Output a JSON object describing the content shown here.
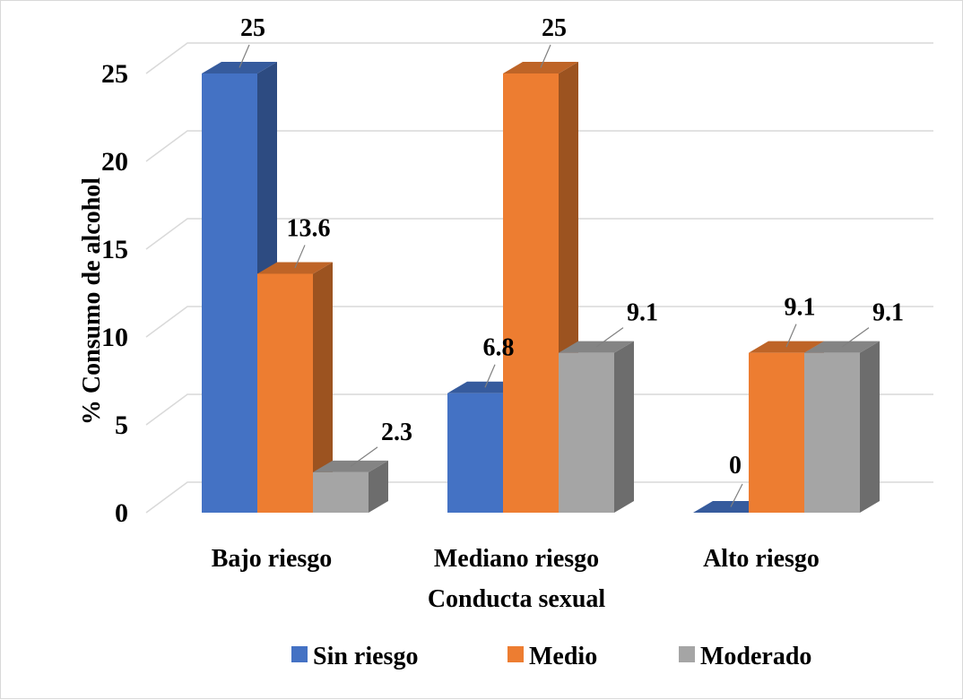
{
  "chart_data": {
    "type": "bar",
    "title": "",
    "xlabel": "Conducta sexual",
    "ylabel": "% Consumo de alcohol",
    "ylim": [
      0,
      25
    ],
    "yticks": [
      "0",
      "5",
      "10",
      "15",
      "20",
      "25"
    ],
    "categories": [
      "Bajo riesgo",
      "Mediano riesgo",
      "Alto riesgo"
    ],
    "series": [
      {
        "name": "Sin riesgo",
        "values": [
          25,
          6.8,
          0
        ],
        "labels": [
          "25",
          "6.8",
          "0"
        ],
        "color": "#4472c4"
      },
      {
        "name": "Medio",
        "values": [
          13.6,
          25,
          9.1
        ],
        "labels": [
          "13.6",
          "25",
          "9.1"
        ],
        "color": "#ed7d31"
      },
      {
        "name": "Moderado",
        "values": [
          2.3,
          9.1,
          9.1
        ],
        "labels": [
          "2.3",
          "9.1",
          "9.1"
        ],
        "color": "#a5a5a5"
      }
    ],
    "grid": true,
    "legend": "bottom",
    "style": "3d-clustered-column"
  }
}
